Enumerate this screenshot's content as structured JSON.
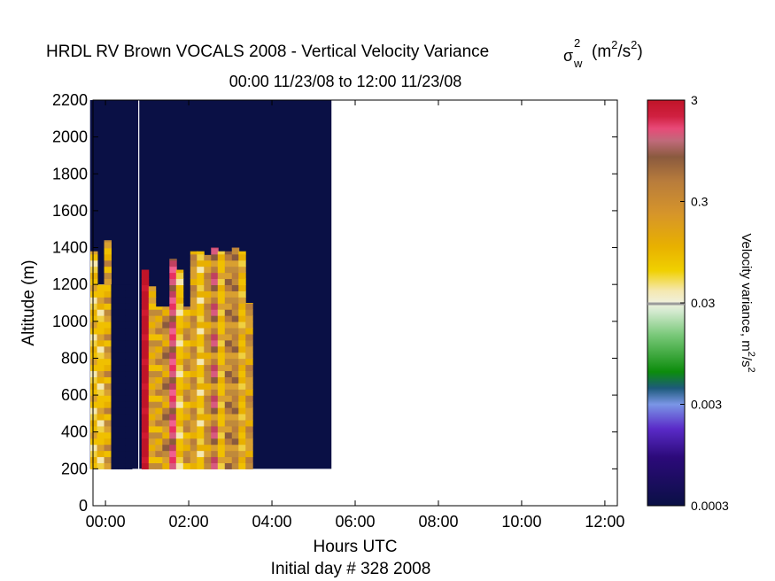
{
  "chart_data": {
    "type": "heatmap",
    "title": "HRDL RV Brown VOCALS 2008 - Vertical Velocity Variance",
    "title_symbol": "σ",
    "title_symbol_sup": "2",
    "title_symbol_sub": "w",
    "title_units_open": "(m",
    "title_units_sup1": "2",
    "title_units_mid": "/s",
    "title_units_sup2": "2",
    "title_units_close": ")",
    "subtitle": "00:00 11/23/08 to 12:00 11/23/08",
    "xlabel": "Hours UTC",
    "xlabel2": "Initial day # 328  2008",
    "ylabel": "Altitude (m)",
    "x_ticks": [
      "00:00",
      "02:00",
      "04:00",
      "06:00",
      "08:00",
      "10:00",
      "12:00"
    ],
    "x_tick_hours": [
      0,
      2,
      4,
      6,
      8,
      10,
      12
    ],
    "xlim_hours": [
      -0.3,
      12.3
    ],
    "y_ticks": [
      0,
      200,
      400,
      600,
      800,
      1000,
      1200,
      1400,
      1600,
      1800,
      2000,
      2200
    ],
    "ylim": [
      0,
      2200
    ],
    "colorbar": {
      "label": "Velocity variance, m",
      "label_sup1": "2",
      "label_mid": "/s",
      "label_sup2": "2",
      "ticks": [
        "0.0003",
        "0.003",
        "0.03",
        "0.3",
        "3"
      ],
      "scale": "log",
      "range": [
        0.0003,
        3
      ],
      "colors": [
        "#0a1045",
        "#2c0a7a",
        "#5a2bc8",
        "#7a96e6",
        "#1c5a7a",
        "#0c8c0c",
        "#78c878",
        "#d4ead0",
        "#f0f0dc",
        "#f0d000",
        "#e8b000",
        "#d6952a",
        "#b87c3c",
        "#8a5a3e",
        "#d85a80",
        "#e83060",
        "#c01428"
      ]
    },
    "data_start_hour": -0.37,
    "data_end_hour": 5.43,
    "data_bottom_alt": 200,
    "time_step_hours": 0.1667,
    "alt_step_m": 33.3,
    "profiles": [
      {
        "t": -0.28,
        "top": 1380,
        "palette": [
          "#f0c000",
          "#e8b000",
          "#f0d040",
          "#f5e8b0",
          "#f0c000",
          "#d9a030"
        ]
      },
      {
        "t": -0.12,
        "top": 1200,
        "palette": [
          "#f0c000",
          "#f0d040",
          "#f5e8b0",
          "#e8b000",
          "#d9a030",
          "#f0c000"
        ]
      },
      {
        "t": 0.05,
        "top": 1440,
        "palette": [
          "#e8b000",
          "#f0c000",
          "#d9a030",
          "#c08a3a",
          "#f0c000",
          "#b87c3c"
        ]
      },
      {
        "t": 0.22,
        "top": 1200,
        "palette": [
          "#0a1045"
        ]
      },
      {
        "t": 0.38,
        "top": 1200,
        "palette": [
          "#0a1045"
        ]
      },
      {
        "t": 0.55,
        "top": 1200,
        "palette": [
          "#0a1045"
        ]
      },
      {
        "t": 0.95,
        "top": 1280,
        "palette": [
          "#c01428",
          "#c01428",
          "#c01428",
          "#d01a30"
        ]
      },
      {
        "t": 1.12,
        "top": 1190,
        "palette": [
          "#e8b000",
          "#d9a030",
          "#c08a3a",
          "#f0c000",
          "#d9a030"
        ]
      },
      {
        "t": 1.28,
        "top": 1080,
        "palette": [
          "#b87c3c",
          "#d9a030",
          "#e8b000",
          "#c08a3a",
          "#f0c000"
        ]
      },
      {
        "t": 1.45,
        "top": 1080,
        "palette": [
          "#d9a030",
          "#c08a3a",
          "#8a5a3e",
          "#b87c3c",
          "#e8b000"
        ]
      },
      {
        "t": 1.62,
        "top": 1340,
        "palette": [
          "#d85a80",
          "#e83060",
          "#f06090",
          "#c04060",
          "#8a5a3e"
        ]
      },
      {
        "t": 1.78,
        "top": 1280,
        "palette": [
          "#f0c000",
          "#f5e8b0",
          "#f0d040",
          "#e8b000",
          "#f0c000"
        ]
      },
      {
        "t": 1.95,
        "top": 1080,
        "palette": [
          "#e8b000",
          "#d9a030",
          "#f0c000",
          "#b87c3c",
          "#c08a3a"
        ]
      },
      {
        "t": 2.12,
        "top": 1380,
        "palette": [
          "#d9a030",
          "#c08a3a",
          "#b87c3c",
          "#e8b000",
          "#d9a030"
        ]
      },
      {
        "t": 2.28,
        "top": 1380,
        "palette": [
          "#f0c000",
          "#f5e8b0",
          "#e8b000",
          "#f0d040",
          "#f0c000"
        ]
      },
      {
        "t": 2.45,
        "top": 1360,
        "palette": [
          "#c08a3a",
          "#b87c3c",
          "#d9a030",
          "#e8b000",
          "#c08a3a"
        ]
      },
      {
        "t": 2.62,
        "top": 1400,
        "palette": [
          "#8a5a3e",
          "#d85a80",
          "#c04060",
          "#b87c3c",
          "#d9a030"
        ]
      },
      {
        "t": 2.78,
        "top": 1380,
        "palette": [
          "#f0c000",
          "#e8b000",
          "#f0d040",
          "#d9a030",
          "#f0c000"
        ]
      },
      {
        "t": 2.95,
        "top": 1380,
        "palette": [
          "#c08a3a",
          "#d9a030",
          "#b87c3c",
          "#8a5a3e",
          "#d9a030"
        ]
      },
      {
        "t": 3.12,
        "top": 1400,
        "palette": [
          "#b87c3c",
          "#c08a3a",
          "#d9a030",
          "#8a5a3e",
          "#c08a3a"
        ]
      },
      {
        "t": 3.28,
        "top": 1380,
        "palette": [
          "#f0c000",
          "#e8b000",
          "#d9a030",
          "#f0d040",
          "#e8b000"
        ]
      },
      {
        "t": 3.45,
        "top": 1100,
        "palette": [
          "#d9a030",
          "#c08a3a",
          "#b87c3c",
          "#e8b000",
          "#d9a030"
        ]
      }
    ]
  }
}
